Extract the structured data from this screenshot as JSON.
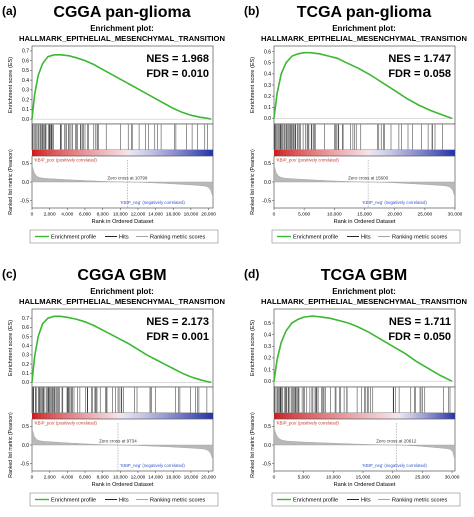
{
  "chart_data": [
    {
      "type": "line",
      "panel_label": "(a)",
      "title": "CGGA pan-glioma",
      "subtitle": "Enrichment plot:",
      "gene_set": "HALLMARK_EPITHELIAL_MESENCHYMAL_TRANSITION",
      "nes": "NES = 1.968",
      "fdr": "FDR = 0.010",
      "ylabel_top": "Enrichment score (ES)",
      "ylabel_bottom": "Ranked list metric (Pearson)",
      "xlabel": "Rank in Ordered Dataset",
      "pos_label": "'KBIP_pos' (positively correlated)",
      "neg_label": "'KBIP_neg' (negatively correlated)",
      "zero_cross": "Zero cross at 10799",
      "zero_cross_x": 10799,
      "xlim": [
        0,
        20500
      ],
      "x_ticks": [
        0,
        2000,
        4000,
        6000,
        8000,
        10000,
        12000,
        14000,
        16000,
        18000,
        20000
      ],
      "x_tick_labels": [
        "0",
        "2,000",
        "4,000",
        "6,000",
        "8,000",
        "10,000",
        "12,000",
        "14,000",
        "16,000",
        "18,000",
        "20,000"
      ],
      "es_ylim": [
        -0.05,
        0.75
      ],
      "es_ticks": [
        0.0,
        0.1,
        0.2,
        0.3,
        0.4,
        0.5,
        0.6,
        0.7
      ],
      "es_tick_labels": [
        "0.0",
        "0.1",
        "0.2",
        "0.3",
        "0.4",
        "0.5",
        "0.6",
        "0.7"
      ],
      "metric_ylim": [
        -0.7,
        0.7
      ],
      "metric_ticks": [
        0.5,
        0.0,
        -0.5
      ],
      "metric_tick_labels": [
        "0.5",
        "0.0",
        "-0.5"
      ],
      "es_curve": {
        "x": [
          0,
          300,
          700,
          1200,
          1800,
          2500,
          3300,
          4200,
          5000,
          6000,
          7000,
          8000,
          9000,
          10000,
          11000,
          12000,
          13000,
          14000,
          15000,
          16000,
          17000,
          18000,
          19000,
          19800,
          20300
        ],
        "y": [
          0.0,
          0.25,
          0.45,
          0.57,
          0.64,
          0.66,
          0.66,
          0.65,
          0.63,
          0.6,
          0.56,
          0.51,
          0.46,
          0.41,
          0.36,
          0.31,
          0.26,
          0.21,
          0.16,
          0.11,
          0.07,
          0.04,
          0.02,
          0.01,
          0.0
        ]
      },
      "hit_density": [
        [
          0,
          2200,
          0.9
        ],
        [
          2200,
          4500,
          0.55
        ],
        [
          4500,
          9000,
          0.3
        ],
        [
          9000,
          14000,
          0.18
        ],
        [
          14000,
          20300,
          0.1
        ]
      ],
      "legend": [
        "Enrichment profile",
        "Hits",
        "Ranking metric scores"
      ]
    },
    {
      "type": "line",
      "panel_label": "(b)",
      "title": "TCGA pan-glioma",
      "subtitle": "Enrichment plot:",
      "gene_set": "HALLMARK_EPITHELIAL_MESENCHYMAL_TRANSITION",
      "nes": "NES = 1.747",
      "fdr": "FDR = 0.058",
      "ylabel_top": "Enrichment score (ES)",
      "ylabel_bottom": "Ranked list metric (Pearson)",
      "xlabel": "Rank in Ordered Dataset",
      "pos_label": "'KBIP_pos' (positively correlated)",
      "neg_label": "'KBIP_neg' (negatively correlated)",
      "zero_cross": "Zero cross at 15600",
      "zero_cross_x": 15600,
      "xlim": [
        0,
        30000
      ],
      "x_ticks": [
        0,
        5000,
        10000,
        15000,
        20000,
        25000,
        30000
      ],
      "x_tick_labels": [
        "0",
        "5,000",
        "10,000",
        "15,000",
        "20,000",
        "25,000",
        "30,000"
      ],
      "es_ylim": [
        -0.05,
        0.65
      ],
      "es_ticks": [
        0.0,
        0.1,
        0.2,
        0.3,
        0.4,
        0.5,
        0.6
      ],
      "es_tick_labels": [
        "0.0",
        "0.1",
        "0.2",
        "0.3",
        "0.4",
        "0.5",
        "0.6"
      ],
      "metric_ylim": [
        -0.7,
        0.7
      ],
      "metric_ticks": [
        0.5,
        0.0,
        -0.5
      ],
      "metric_tick_labels": [
        "0.5",
        "0.0",
        "-0.5"
      ],
      "es_curve": {
        "x": [
          0,
          500,
          1200,
          2000,
          3000,
          4000,
          5000,
          6000,
          7500,
          9000,
          10500,
          12000,
          14000,
          16000,
          18000,
          20000,
          22000,
          24000,
          26000,
          28000,
          29500
        ],
        "y": [
          0.0,
          0.22,
          0.4,
          0.5,
          0.56,
          0.58,
          0.59,
          0.59,
          0.58,
          0.56,
          0.54,
          0.5,
          0.45,
          0.39,
          0.32,
          0.25,
          0.18,
          0.12,
          0.07,
          0.03,
          0.0
        ]
      },
      "hit_density": [
        [
          0,
          3500,
          0.85
        ],
        [
          3500,
          7000,
          0.5
        ],
        [
          7000,
          14000,
          0.3
        ],
        [
          14000,
          22000,
          0.18
        ],
        [
          22000,
          29500,
          0.1
        ]
      ],
      "legend": [
        "Enrichment profile",
        "Hits",
        "Ranking metric scores"
      ]
    },
    {
      "type": "line",
      "panel_label": "(c)",
      "title": "CGGA GBM",
      "subtitle": "Enrichment plot:",
      "gene_set": "HALLMARK_EPITHELIAL_MESENCHYMAL_TRANSITION",
      "nes": "NES = 2.173",
      "fdr": "FDR = 0.001",
      "ylabel_top": "Enrichment score (ES)",
      "ylabel_bottom": "Ranked list metric (Pearson)",
      "xlabel": "Rank in Ordered Dataset",
      "pos_label": "'KBIP_pos' (positively correlated)",
      "neg_label": "'KBIP_neg' (negatively correlated)",
      "zero_cross": "Zero cross at 9734",
      "zero_cross_x": 9734,
      "xlim": [
        0,
        20500
      ],
      "x_ticks": [
        0,
        2000,
        4000,
        6000,
        8000,
        10000,
        12000,
        14000,
        16000,
        18000,
        20000
      ],
      "x_tick_labels": [
        "0",
        "2,000",
        "4,000",
        "6,000",
        "8,000",
        "10,000",
        "12,000",
        "14,000",
        "16,000",
        "18,000",
        "20,000"
      ],
      "es_ylim": [
        -0.05,
        0.8
      ],
      "es_ticks": [
        0.0,
        0.1,
        0.2,
        0.3,
        0.4,
        0.5,
        0.6,
        0.7
      ],
      "es_tick_labels": [
        "0.0",
        "0.1",
        "0.2",
        "0.3",
        "0.4",
        "0.5",
        "0.6",
        "0.7"
      ],
      "metric_ylim": [
        -0.7,
        0.7
      ],
      "metric_ticks": [
        0.5,
        0.0,
        -0.5
      ],
      "metric_tick_labels": [
        "0.5",
        "0.0",
        "-0.5"
      ],
      "es_curve": {
        "x": [
          0,
          300,
          700,
          1200,
          1800,
          2500,
          3200,
          4000,
          5000,
          6000,
          7000,
          8000,
          9000,
          10000,
          11000,
          12000,
          13000,
          14000,
          15000,
          16000,
          17000,
          18000,
          19000,
          19800,
          20300
        ],
        "y": [
          0.0,
          0.28,
          0.5,
          0.64,
          0.7,
          0.72,
          0.72,
          0.71,
          0.69,
          0.66,
          0.62,
          0.57,
          0.52,
          0.47,
          0.42,
          0.36,
          0.3,
          0.25,
          0.2,
          0.15,
          0.1,
          0.06,
          0.03,
          0.01,
          0.0
        ]
      },
      "hit_density": [
        [
          0,
          2500,
          0.9
        ],
        [
          2500,
          5000,
          0.5
        ],
        [
          5000,
          9000,
          0.3
        ],
        [
          9000,
          14000,
          0.17
        ],
        [
          14000,
          20300,
          0.1
        ]
      ],
      "legend": [
        "Enrichment profile",
        "Hits",
        "Ranking metric scores"
      ]
    },
    {
      "type": "line",
      "panel_label": "(d)",
      "title": "TCGA GBM",
      "subtitle": "Enrichment plot:",
      "gene_set": "HALLMARK_EPITHELIAL_MESENCHYMAL_TRANSITION",
      "nes": "NES = 1.711",
      "fdr": "FDR = 0.050",
      "ylabel_top": "Enrichment score (ES)",
      "ylabel_bottom": "Ranked list metric (Pearson)",
      "xlabel": "Rank in Ordered Dataset",
      "pos_label": "'KBIP_pos' (positively correlated)",
      "neg_label": "'KBIP_neg' (negatively correlated)",
      "zero_cross": "Zero cross at 20612",
      "zero_cross_x": 20612,
      "xlim": [
        0,
        30500
      ],
      "x_ticks": [
        0,
        5000,
        10000,
        15000,
        20000,
        25000,
        30000
      ],
      "x_tick_labels": [
        "0",
        "5,000",
        "10,000",
        "15,000",
        "20,000",
        "25,000",
        "30,000"
      ],
      "es_ylim": [
        -0.05,
        0.62
      ],
      "es_ticks": [
        0.0,
        0.1,
        0.2,
        0.3,
        0.4,
        0.5
      ],
      "es_tick_labels": [
        "0.0",
        "0.1",
        "0.2",
        "0.3",
        "0.4",
        "0.5"
      ],
      "metric_ylim": [
        -0.7,
        0.7
      ],
      "metric_ticks": [
        0.5,
        0.0,
        -0.5
      ],
      "metric_tick_labels": [
        "0.5",
        "0.0",
        "-0.5"
      ],
      "es_curve": {
        "x": [
          0,
          500,
          1200,
          2000,
          3000,
          4000,
          5000,
          6500,
          8000,
          9500,
          11000,
          12500,
          14000,
          16000,
          18000,
          20000,
          22000,
          24000,
          26000,
          28000,
          30000
        ],
        "y": [
          0.0,
          0.18,
          0.33,
          0.43,
          0.5,
          0.53,
          0.55,
          0.56,
          0.55,
          0.54,
          0.52,
          0.5,
          0.47,
          0.42,
          0.36,
          0.3,
          0.24,
          0.17,
          0.11,
          0.05,
          0.0
        ]
      },
      "hit_density": [
        [
          0,
          4000,
          0.85
        ],
        [
          4000,
          8000,
          0.5
        ],
        [
          8000,
          15000,
          0.3
        ],
        [
          15000,
          23000,
          0.18
        ],
        [
          23000,
          30000,
          0.1
        ]
      ],
      "legend": [
        "Enrichment profile",
        "Hits",
        "Ranking metric scores"
      ]
    }
  ]
}
